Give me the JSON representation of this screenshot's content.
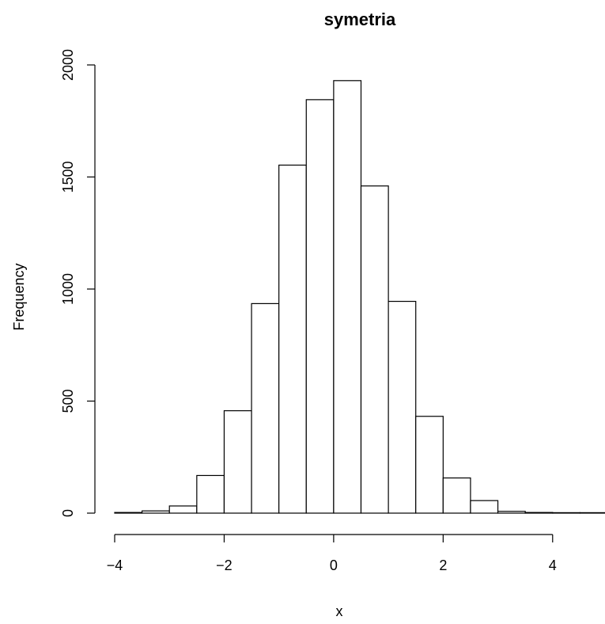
{
  "chart_data": {
    "type": "bar",
    "subtype": "histogram",
    "title": "symetria",
    "xlabel": "x",
    "ylabel": "Frequency",
    "xlim": [
      -4,
      5
    ],
    "ylim": [
      0,
      2000
    ],
    "bin_edges": [
      -4,
      -3.5,
      -3,
      -2.5,
      -2,
      -1.5,
      -1,
      -0.5,
      0,
      0.5,
      1,
      1.5,
      2,
      2.5,
      3,
      3.5,
      4,
      4.5,
      5
    ],
    "values": [
      3,
      10,
      32,
      168,
      457,
      935,
      1553,
      1845,
      1930,
      1460,
      945,
      432,
      157,
      56,
      8,
      3,
      0,
      2
    ],
    "x_ticks": [
      -4,
      -2,
      0,
      2,
      4
    ],
    "x_tick_labels": [
      "−4",
      "−2",
      "0",
      "2",
      "4"
    ],
    "y_ticks": [
      0,
      500,
      1000,
      1500,
      2000
    ],
    "y_tick_labels": [
      "0",
      "500",
      "1000",
      "1500",
      "2000"
    ],
    "grid": false,
    "legend": "none",
    "colors": {
      "bar_fill": "#ffffff",
      "bar_stroke": "#000000"
    }
  }
}
